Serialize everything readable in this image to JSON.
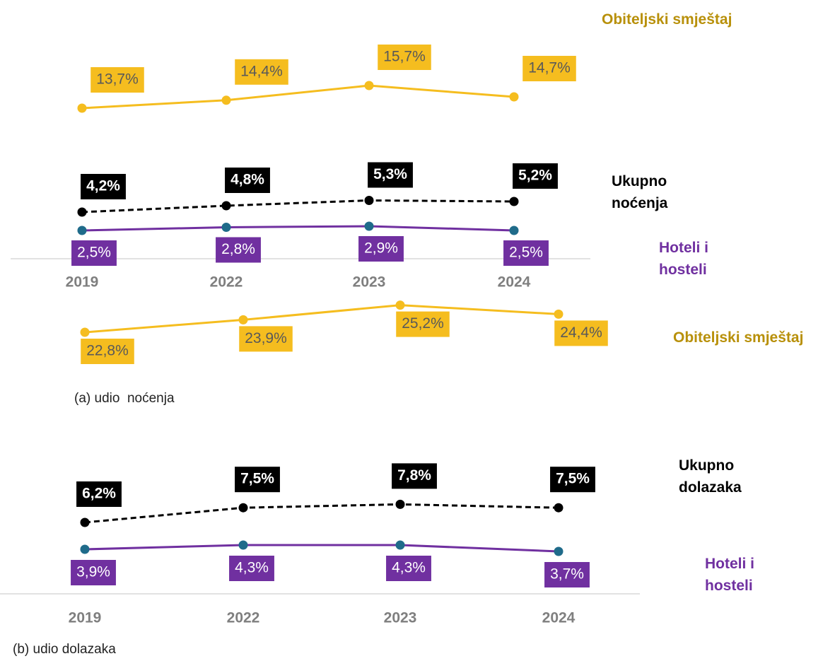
{
  "chart_data": [
    {
      "type": "line",
      "caption": "(a) udio  noćenja",
      "categories": [
        "2019",
        "2022",
        "2023",
        "2024"
      ],
      "series": [
        {
          "name": "Obiteljski smještaj",
          "color": "#f5bd1f",
          "label_color": "#b8900a",
          "style": "solid",
          "values": [
            13.7,
            14.4,
            15.7,
            14.7
          ],
          "value_labels": [
            "13,7%",
            "14,4%",
            "15,7%",
            "14,7%"
          ]
        },
        {
          "name": "Ukupno noćenja",
          "color": "#000000",
          "label_color": "#000000",
          "style": "dashed",
          "values": [
            4.2,
            4.8,
            5.3,
            5.2
          ],
          "value_labels": [
            "4,2%",
            "4,8%",
            "5,3%",
            "5,2%"
          ]
        },
        {
          "name": "Hoteli i hosteli",
          "color": "#7030a0",
          "marker_color": "#1f6b8a",
          "label_color": "#7030a0",
          "style": "solid",
          "values": [
            2.5,
            2.8,
            2.9,
            2.5
          ],
          "value_labels": [
            "2,5%",
            "2,8%",
            "2,9%",
            "2,5%"
          ]
        },
        {
          "name": "Obiteljski smještaj",
          "color": "#f5bd1f",
          "label_color": "#b8900a",
          "style": "solid",
          "values": [
            22.8,
            23.9,
            25.2,
            24.4
          ],
          "value_labels": [
            "22,8%",
            "23,9%",
            "25,2%",
            "24,4%"
          ]
        }
      ]
    },
    {
      "type": "line",
      "caption": "(b) udio dolazaka",
      "categories": [
        "2019",
        "2022",
        "2023",
        "2024"
      ],
      "series": [
        {
          "name": "Ukupno dolazaka",
          "color": "#000000",
          "label_color": "#000000",
          "style": "dashed",
          "values": [
            6.2,
            7.5,
            7.8,
            7.5
          ],
          "value_labels": [
            "6,2%",
            "7,5%",
            "7,8%",
            "7,5%"
          ]
        },
        {
          "name": "Hoteli i hosteli",
          "color": "#7030a0",
          "marker_color": "#1f6b8a",
          "label_color": "#7030a0",
          "style": "solid",
          "values": [
            3.9,
            4.3,
            4.3,
            3.7
          ],
          "value_labels": [
            "3,9%",
            "4,3%",
            "4,3%",
            "3,7%"
          ]
        }
      ]
    }
  ]
}
